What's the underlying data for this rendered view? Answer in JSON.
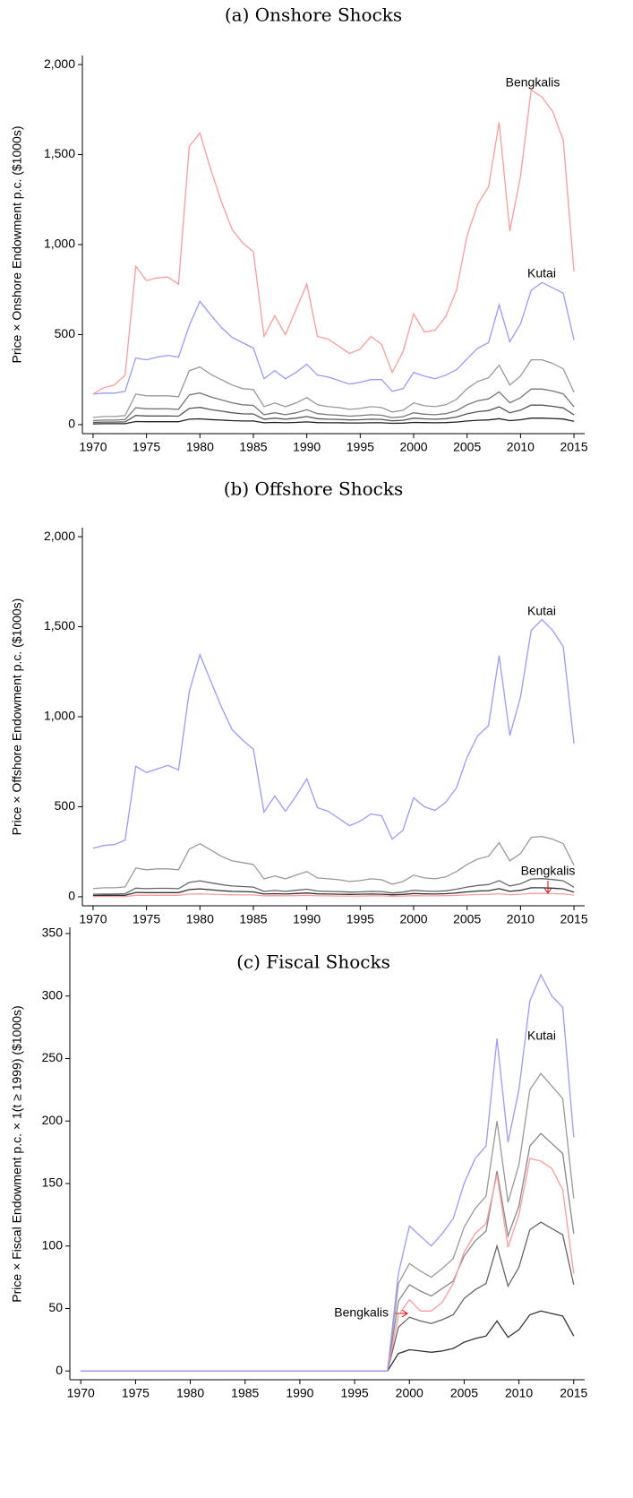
{
  "chart_data": [
    {
      "type": "line",
      "title": "(a) Onshore Shocks",
      "y_label": "Price × Onshore Endowment p.c. ($1000s)",
      "x": [
        1970,
        1971,
        1972,
        1973,
        1974,
        1975,
        1976,
        1977,
        1978,
        1979,
        1980,
        1981,
        1982,
        1983,
        1984,
        1985,
        1986,
        1987,
        1988,
        1989,
        1990,
        1991,
        1992,
        1993,
        1994,
        1995,
        1996,
        1997,
        1998,
        1999,
        2000,
        2001,
        2002,
        2003,
        2004,
        2005,
        2006,
        2007,
        2008,
        2009,
        2010,
        2011,
        2012,
        2013,
        2014,
        2015
      ],
      "xlim": [
        1969,
        2016
      ],
      "xticks": [
        1970,
        1975,
        1980,
        1985,
        1990,
        1995,
        2000,
        2005,
        2010,
        2015
      ],
      "ylim": [
        -50,
        2050
      ],
      "yticks": [
        0,
        500,
        {
          "value": 1000,
          "label": "1,000"
        },
        {
          "value": 1500,
          "label": "1,500"
        },
        {
          "value": 2000,
          "label": "2,000"
        }
      ],
      "series": [
        {
          "color": "#999999",
          "values": [
            40,
            45,
            45,
            50,
            170,
            160,
            160,
            160,
            155,
            300,
            320,
            280,
            250,
            220,
            200,
            195,
            100,
            120,
            100,
            120,
            150,
            110,
            100,
            95,
            85,
            90,
            100,
            95,
            70,
            80,
            120,
            105,
            100,
            110,
            140,
            200,
            240,
            260,
            330,
            220,
            270,
            360,
            360,
            340,
            310,
            180
          ]
        },
        {
          "color": "#777777",
          "values": [
            22,
            25,
            25,
            28,
            94,
            88,
            88,
            88,
            85,
            165,
            176,
            154,
            138,
            121,
            110,
            107,
            55,
            66,
            55,
            66,
            83,
            61,
            55,
            52,
            47,
            50,
            55,
            52,
            39,
            44,
            66,
            58,
            55,
            61,
            77,
            110,
            132,
            143,
            182,
            121,
            149,
            198,
            198,
            187,
            171,
            99
          ]
        },
        {
          "color": "#555555",
          "values": [
            12,
            14,
            14,
            15,
            51,
            48,
            48,
            48,
            47,
            90,
            96,
            84,
            75,
            66,
            60,
            59,
            30,
            36,
            30,
            36,
            45,
            33,
            30,
            29,
            26,
            27,
            30,
            29,
            21,
            24,
            36,
            32,
            30,
            33,
            42,
            60,
            72,
            78,
            99,
            66,
            81,
            108,
            108,
            102,
            93,
            54
          ]
        },
        {
          "color": "#222222",
          "values": [
            4,
            5,
            5,
            5,
            17,
            16,
            16,
            16,
            16,
            30,
            32,
            28,
            25,
            22,
            20,
            20,
            10,
            12,
            10,
            12,
            15,
            11,
            10,
            10,
            9,
            9,
            10,
            10,
            7,
            8,
            12,
            11,
            10,
            11,
            14,
            20,
            24,
            26,
            33,
            22,
            27,
            36,
            36,
            34,
            31,
            18
          ]
        },
        {
          "name": "Kutai",
          "color": "#9a9aff",
          "label_color": "#0000ee",
          "values": [
            170,
            175,
            175,
            185,
            370,
            360,
            375,
            385,
            375,
            550,
            685,
            610,
            540,
            485,
            455,
            425,
            255,
            300,
            255,
            290,
            335,
            275,
            265,
            245,
            225,
            235,
            250,
            250,
            185,
            200,
            290,
            270,
            255,
            275,
            305,
            365,
            425,
            455,
            665,
            460,
            560,
            745,
            790,
            760,
            730,
            470
          ]
        },
        {
          "name": "Bengkalis",
          "color": "#ff9a9a",
          "label_color": "#ee0000",
          "values": [
            170,
            205,
            220,
            275,
            880,
            800,
            815,
            820,
            780,
            1545,
            1620,
            1420,
            1240,
            1085,
            1010,
            960,
            490,
            605,
            500,
            640,
            780,
            490,
            475,
            435,
            395,
            420,
            490,
            445,
            290,
            405,
            615,
            515,
            525,
            600,
            745,
            1050,
            1225,
            1320,
            1680,
            1075,
            1380,
            1860,
            1820,
            1740,
            1580,
            850
          ]
        }
      ]
    },
    {
      "type": "line",
      "title": "(b) Offshore Shocks",
      "y_label": "Price × Offshore Endowment p.c. ($1000s)",
      "x": [
        1970,
        1971,
        1972,
        1973,
        1974,
        1975,
        1976,
        1977,
        1978,
        1979,
        1980,
        1981,
        1982,
        1983,
        1984,
        1985,
        1986,
        1987,
        1988,
        1989,
        1990,
        1991,
        1992,
        1993,
        1994,
        1995,
        1996,
        1997,
        1998,
        1999,
        2000,
        2001,
        2002,
        2003,
        2004,
        2005,
        2006,
        2007,
        2008,
        2009,
        2010,
        2011,
        2012,
        2013,
        2014,
        2015
      ],
      "xlim": [
        1969,
        2016
      ],
      "xticks": [
        1970,
        1975,
        1980,
        1985,
        1990,
        1995,
        2000,
        2005,
        2010,
        2015
      ],
      "ylim": [
        -50,
        2050
      ],
      "yticks": [
        0,
        500,
        {
          "value": 1000,
          "label": "1,000"
        },
        {
          "value": 1500,
          "label": "1,500"
        },
        {
          "value": 2000,
          "label": "2,000"
        }
      ],
      "series": [
        {
          "color": "#999999",
          "values": [
            45,
            50,
            50,
            55,
            160,
            150,
            155,
            155,
            150,
            265,
            295,
            260,
            225,
            200,
            190,
            180,
            100,
            115,
            100,
            120,
            140,
            105,
            100,
            95,
            85,
            90,
            100,
            95,
            70,
            85,
            120,
            105,
            100,
            110,
            140,
            180,
            210,
            225,
            300,
            200,
            240,
            330,
            335,
            320,
            295,
            175
          ]
        },
        {
          "color": "#666666",
          "values": [
            14,
            15,
            15,
            17,
            48,
            45,
            47,
            47,
            45,
            80,
            89,
            78,
            68,
            60,
            57,
            54,
            30,
            35,
            30,
            36,
            42,
            32,
            30,
            29,
            26,
            27,
            30,
            29,
            21,
            26,
            36,
            32,
            30,
            33,
            42,
            54,
            63,
            68,
            90,
            60,
            72,
            99,
            101,
            96,
            89,
            53
          ]
        },
        {
          "color": "#333333",
          "values": [
            7,
            8,
            8,
            8,
            24,
            23,
            23,
            23,
            23,
            40,
            44,
            39,
            34,
            30,
            29,
            27,
            15,
            17,
            15,
            18,
            21,
            16,
            15,
            14,
            13,
            14,
            15,
            14,
            11,
            13,
            18,
            16,
            15,
            17,
            21,
            27,
            32,
            34,
            45,
            30,
            36,
            50,
            50,
            48,
            44,
            26
          ]
        },
        {
          "name": "Bengkalis",
          "color": "#ff9a9a",
          "label_color": "#ee0000",
          "values": [
            2,
            2,
            2,
            2,
            8,
            8,
            8,
            8,
            8,
            15,
            16,
            14,
            12,
            11,
            10,
            10,
            5,
            6,
            5,
            6,
            8,
            5,
            5,
            4,
            4,
            4,
            5,
            5,
            3,
            4,
            6,
            5,
            5,
            6,
            7,
            10,
            12,
            13,
            17,
            11,
            14,
            19,
            18,
            17,
            16,
            9
          ]
        },
        {
          "name": "Kutai",
          "color": "#9a9aff",
          "label_color": "#0000ee",
          "values": [
            270,
            285,
            290,
            315,
            725,
            690,
            710,
            730,
            705,
            1140,
            1345,
            1200,
            1055,
            930,
            870,
            820,
            470,
            560,
            475,
            560,
            655,
            495,
            475,
            435,
            395,
            420,
            460,
            450,
            320,
            370,
            550,
            500,
            480,
            525,
            605,
            775,
            895,
            950,
            1340,
            895,
            1110,
            1480,
            1540,
            1480,
            1390,
            850
          ]
        }
      ]
    },
    {
      "type": "line",
      "title": "(c) Fiscal Shocks",
      "y_label": "Price × Fiscal Endowment p.c. × 1(t ≥ 1999) ($1000s)",
      "x": [
        1970,
        1971,
        1972,
        1973,
        1974,
        1975,
        1976,
        1977,
        1978,
        1979,
        1980,
        1981,
        1982,
        1983,
        1984,
        1985,
        1986,
        1987,
        1988,
        1989,
        1990,
        1991,
        1992,
        1993,
        1994,
        1995,
        1996,
        1997,
        1998,
        1999,
        2000,
        2001,
        2002,
        2003,
        2004,
        2005,
        2006,
        2007,
        2008,
        2009,
        2010,
        2011,
        2012,
        2013,
        2014,
        2015
      ],
      "xlim": [
        1969,
        2016
      ],
      "xticks": [
        1970,
        1975,
        1980,
        1985,
        1990,
        1995,
        2000,
        2005,
        2010,
        2015
      ],
      "ylim": [
        -7,
        355
      ],
      "yticks": [
        0,
        50,
        100,
        150,
        200,
        250,
        300,
        350
      ],
      "series": [
        {
          "color": "#999999",
          "values": [
            0,
            0,
            0,
            0,
            0,
            0,
            0,
            0,
            0,
            0,
            0,
            0,
            0,
            0,
            0,
            0,
            0,
            0,
            0,
            0,
            0,
            0,
            0,
            0,
            0,
            0,
            0,
            0,
            0,
            70,
            86,
            80,
            75,
            82,
            90,
            115,
            130,
            140,
            200,
            135,
            165,
            225,
            238,
            228,
            218,
            138
          ]
        },
        {
          "color": "#888888",
          "values": [
            0,
            0,
            0,
            0,
            0,
            0,
            0,
            0,
            0,
            0,
            0,
            0,
            0,
            0,
            0,
            0,
            0,
            0,
            0,
            0,
            0,
            0,
            0,
            0,
            0,
            0,
            0,
            0,
            0,
            56,
            69,
            64,
            60,
            66,
            72,
            92,
            104,
            112,
            160,
            108,
            132,
            180,
            190,
            182,
            174,
            110
          ]
        },
        {
          "color": "#666666",
          "values": [
            0,
            0,
            0,
            0,
            0,
            0,
            0,
            0,
            0,
            0,
            0,
            0,
            0,
            0,
            0,
            0,
            0,
            0,
            0,
            0,
            0,
            0,
            0,
            0,
            0,
            0,
            0,
            0,
            0,
            35,
            43,
            40,
            38,
            41,
            45,
            58,
            65,
            70,
            100,
            68,
            83,
            113,
            119,
            114,
            109,
            69
          ]
        },
        {
          "color": "#333333",
          "values": [
            0,
            0,
            0,
            0,
            0,
            0,
            0,
            0,
            0,
            0,
            0,
            0,
            0,
            0,
            0,
            0,
            0,
            0,
            0,
            0,
            0,
            0,
            0,
            0,
            0,
            0,
            0,
            0,
            0,
            14,
            17,
            16,
            15,
            16,
            18,
            23,
            26,
            28,
            40,
            27,
            33,
            45,
            48,
            46,
            44,
            28
          ]
        },
        {
          "name": "Bengkalis",
          "color": "#ff9a9a",
          "label_color": "#ee0000",
          "values": [
            0,
            0,
            0,
            0,
            0,
            0,
            0,
            0,
            0,
            0,
            0,
            0,
            0,
            0,
            0,
            0,
            0,
            0,
            0,
            0,
            0,
            0,
            0,
            0,
            0,
            0,
            0,
            0,
            0,
            45,
            57,
            48,
            48,
            55,
            70,
            95,
            110,
            118,
            157,
            99,
            125,
            170,
            168,
            162,
            145,
            78
          ]
        },
        {
          "name": "Kutai",
          "color": "#9a9aff",
          "label_color": "#0000ee",
          "values": [
            0,
            0,
            0,
            0,
            0,
            0,
            0,
            0,
            0,
            0,
            0,
            0,
            0,
            0,
            0,
            0,
            0,
            0,
            0,
            0,
            0,
            0,
            0,
            0,
            0,
            0,
            0,
            0,
            0,
            78,
            116,
            108,
            100,
            110,
            122,
            150,
            170,
            180,
            266,
            183,
            225,
            296,
            317,
            300,
            291,
            187
          ]
        }
      ]
    }
  ]
}
